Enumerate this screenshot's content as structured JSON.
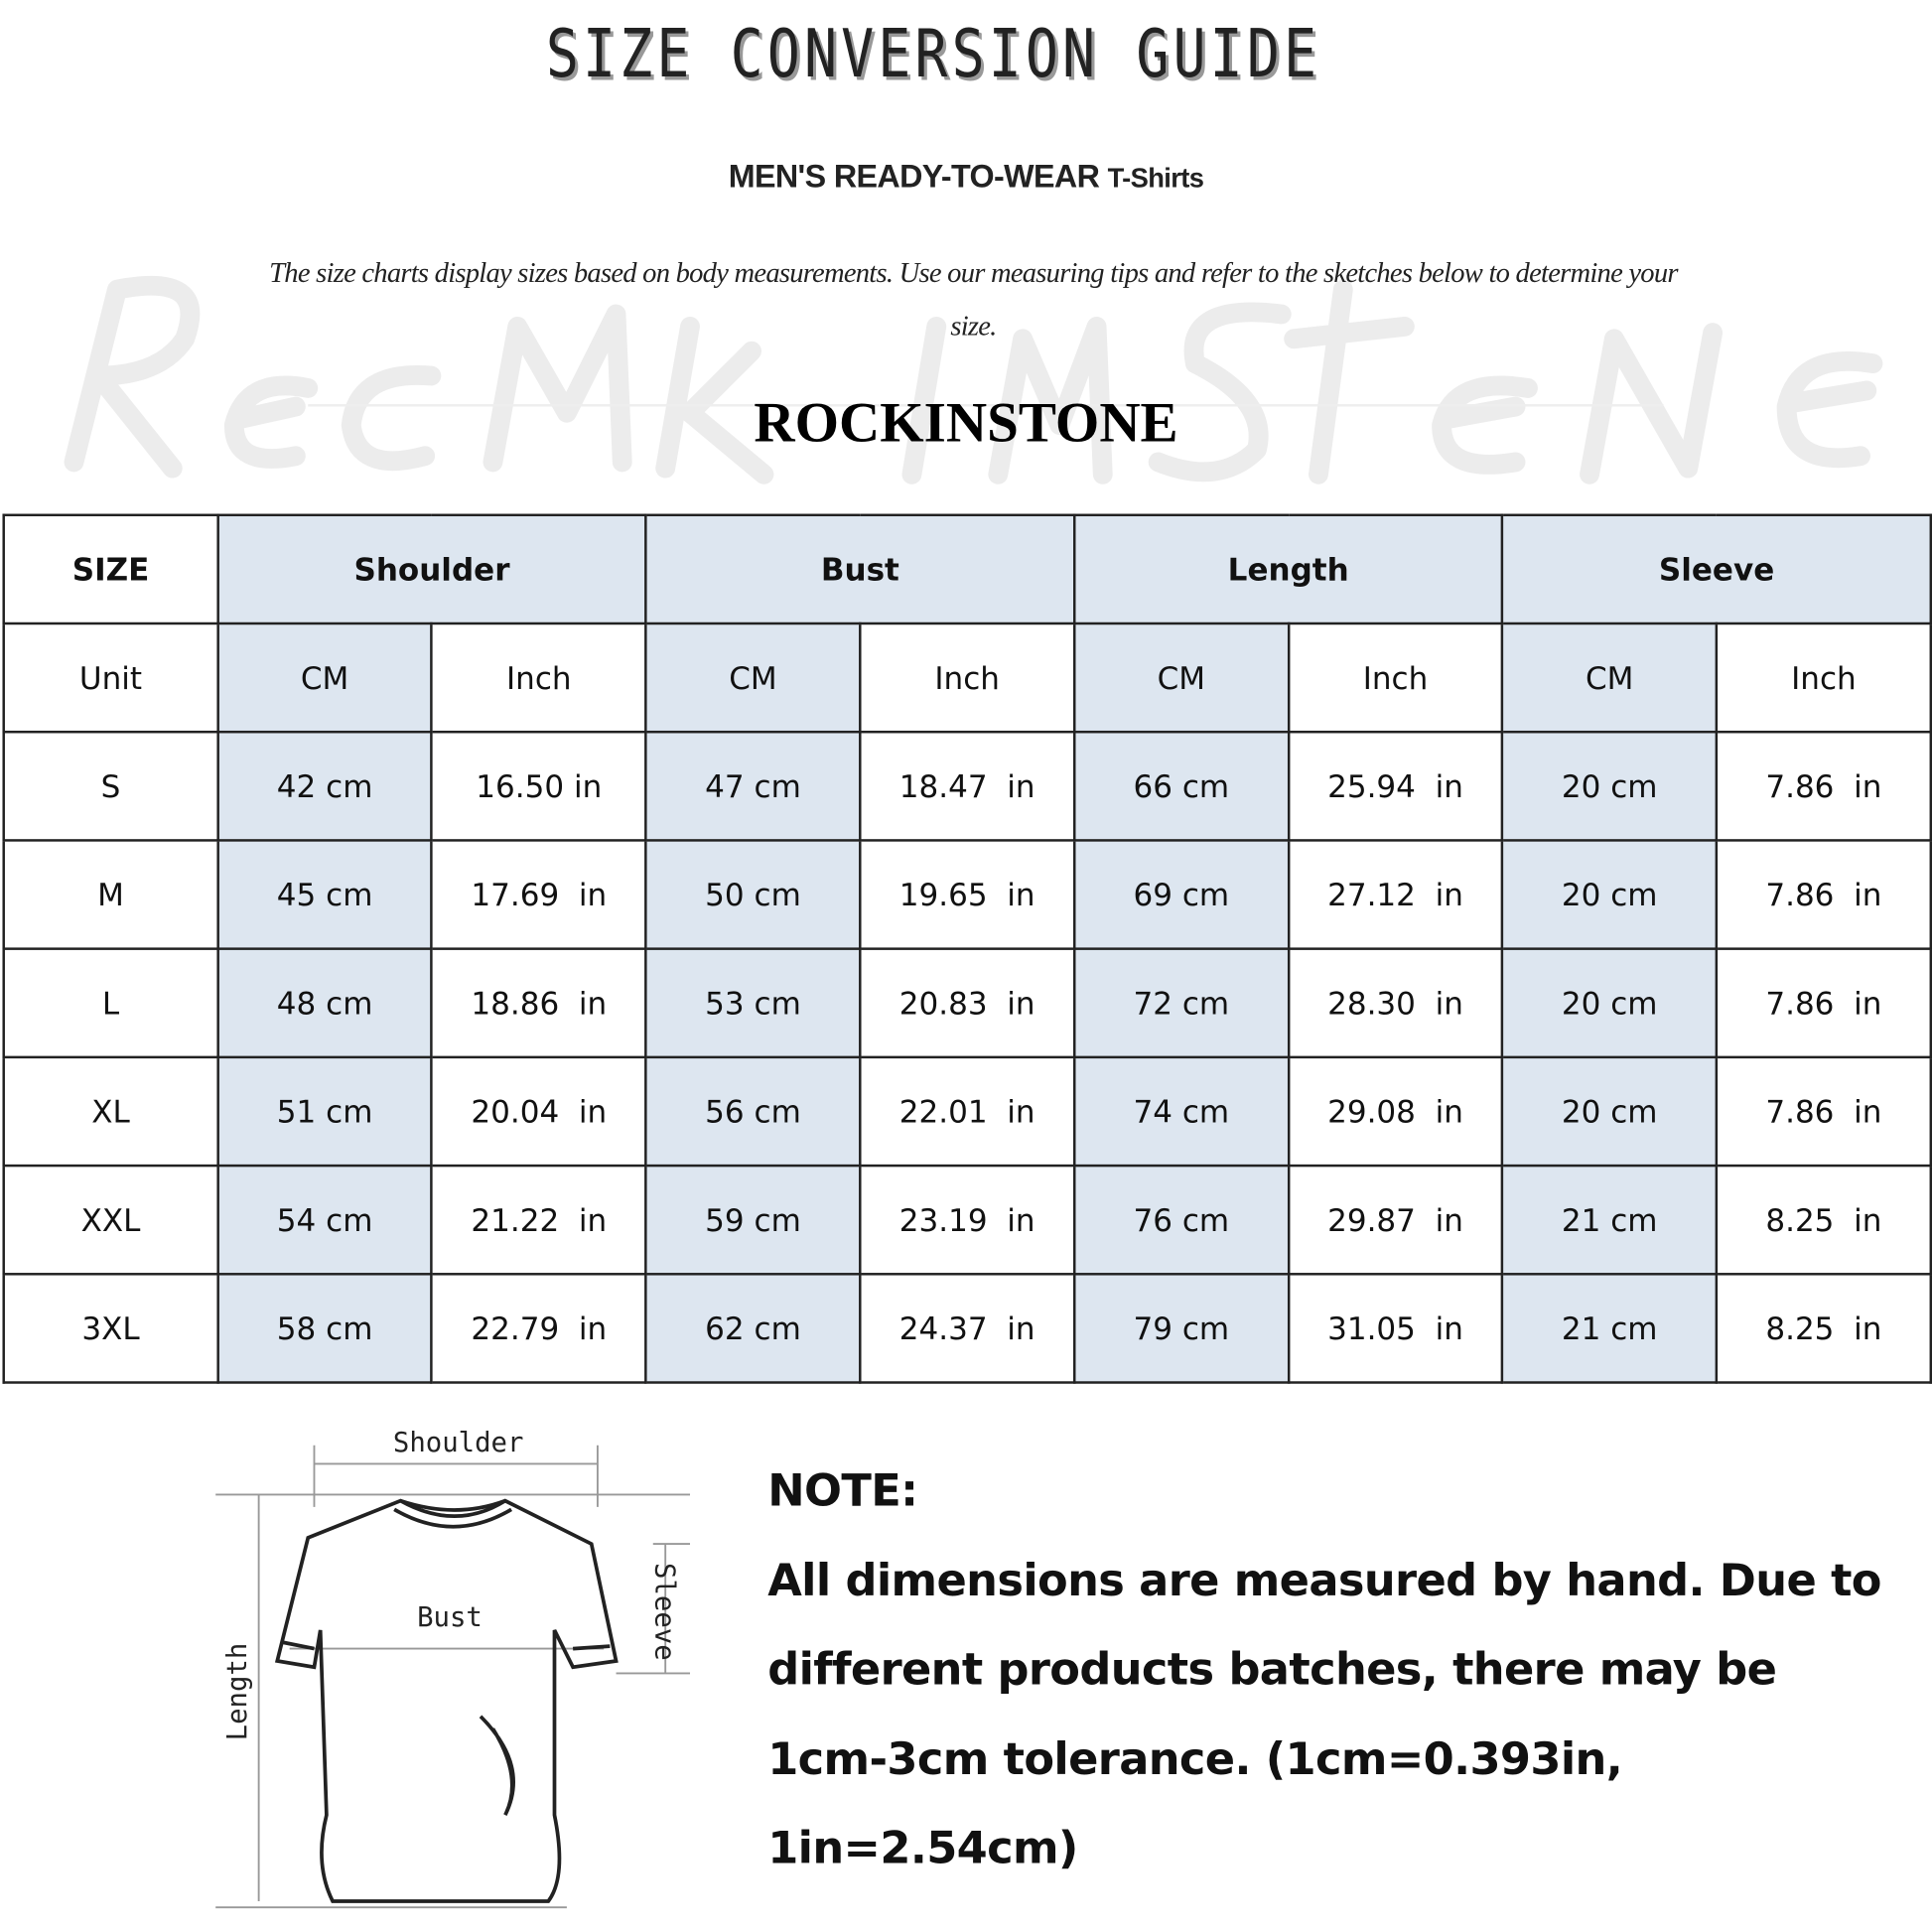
{
  "title": "SIZE CONVERSION GUIDE",
  "subtitle": {
    "main": "MEN'S READY-TO-WEAR",
    "product": "T-Shirts"
  },
  "description": "The size charts display sizes based on body measurements. Use our measuring tips and refer to the sketches below to determine your size.",
  "watermark": "Rock In Stone",
  "brand": "ROCKINSTONE",
  "table": {
    "header": [
      "SIZE",
      "Shoulder",
      "Bust",
      "Length",
      "Sleeve"
    ],
    "unit_row": [
      "Unit",
      "CM",
      "Inch",
      "CM",
      "Inch",
      "CM",
      "Inch",
      "CM",
      "Inch"
    ],
    "rows": [
      [
        "S",
        "42 cm",
        "16.50 in",
        "47 cm",
        "18.47  in",
        "66 cm",
        "25.94  in",
        "20 cm",
        "7.86  in"
      ],
      [
        "M",
        "45 cm",
        "17.69  in",
        "50 cm",
        "19.65  in",
        "69 cm",
        "27.12  in",
        "20 cm",
        "7.86  in"
      ],
      [
        "L",
        "48 cm",
        "18.86  in",
        "53 cm",
        "20.83  in",
        "72 cm",
        "28.30  in",
        "20 cm",
        "7.86  in"
      ],
      [
        "XL",
        "51 cm",
        "20.04  in",
        "56 cm",
        "22.01  in",
        "74 cm",
        "29.08  in",
        "20 cm",
        "7.86  in"
      ],
      [
        "XXL",
        "54 cm",
        "21.22  in",
        "59 cm",
        "23.19  in",
        "76 cm",
        "29.87  in",
        "21 cm",
        "8.25  in"
      ],
      [
        "3XL",
        "58 cm",
        "22.79  in",
        "62 cm",
        "24.37  in",
        "79 cm",
        "31.05  in",
        "21 cm",
        "8.25  in"
      ]
    ],
    "highlight_color": "#dde6f0"
  },
  "sketch": {
    "shoulder": "Shoulder",
    "bust": "Bust",
    "length": "Length",
    "sleeve": "Sleeve"
  },
  "note": {
    "heading": "NOTE:",
    "body": "All dimensions are measured by hand. Due to different products batches, there may be 1cm-3cm tolerance. (1cm=0.393in, 1in=2.54cm)"
  }
}
